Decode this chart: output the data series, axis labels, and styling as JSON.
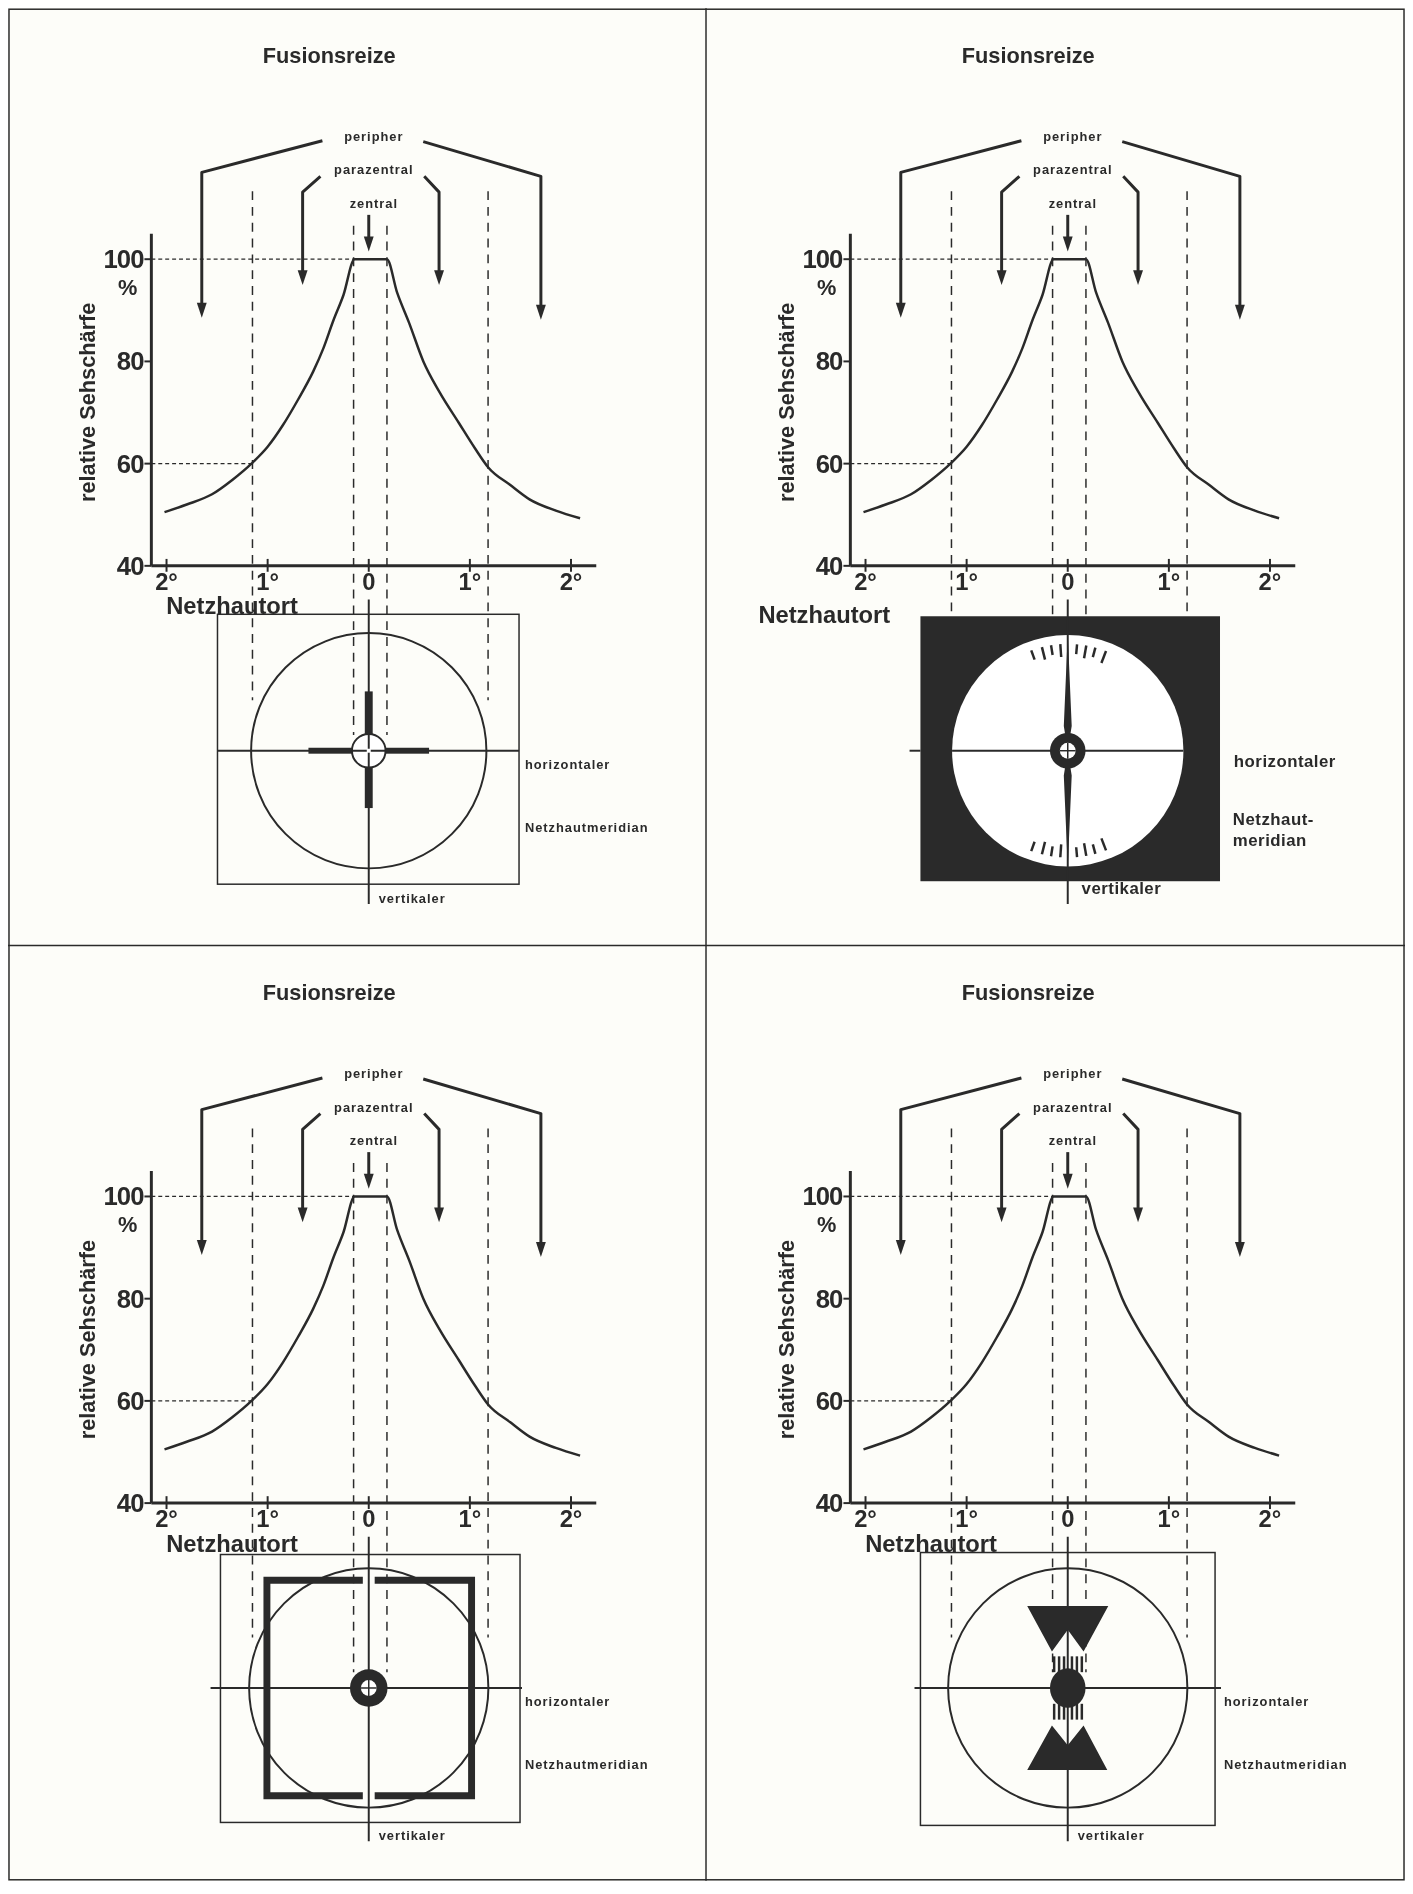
{
  "chart_data": [
    {
      "type": "line",
      "title": "Fusionsreize",
      "xlabel": "Netzhautort",
      "ylabel": "relative Sehschärfe",
      "annotations": [
        "peripher",
        "parazentral",
        "zentral",
        "%",
        "horizontaler",
        "Netzhautmeridian",
        "vertikaler"
      ],
      "x": [
        -2.02,
        -1.8,
        -1.55,
        -1.35,
        -1.16,
        -1.0,
        -0.85,
        -0.7,
        -0.55,
        -0.45,
        -0.35,
        -0.25,
        -0.14,
        0.18,
        0.28,
        0.4,
        0.54,
        0.7,
        0.89,
        1.05,
        1.18,
        1.4,
        1.59,
        1.85,
        2.09
      ],
      "series": [
        {
          "color": "#2a2a2a",
          "values": [
            50.5,
            52,
            54,
            56.8,
            60,
            63.3,
            67.5,
            72.5,
            78,
            82.5,
            88,
            93,
            100,
            100,
            93.5,
            87.5,
            80,
            74,
            68,
            63,
            59.3,
            55.8,
            53,
            50.8,
            49.3
          ]
        }
      ],
      "ref_lines": [
        {
          "axis": "x",
          "value": -1.15,
          "line_style": "dashed"
        },
        {
          "axis": "x",
          "value": -0.15,
          "line_style": "dashed"
        },
        {
          "axis": "x",
          "value": 0.18,
          "line_style": "dashed"
        },
        {
          "axis": "x",
          "value": 1.18,
          "line_style": "dashed"
        },
        {
          "axis": "y",
          "value": 100,
          "line_style": "dashed"
        },
        {
          "axis": "y",
          "value": 60,
          "line_style": "dashed"
        }
      ],
      "xlim": [
        -2.15,
        2.25
      ],
      "ylim": [
        40,
        105
      ],
      "xticks": [
        {
          "value": -2,
          "label": "2°"
        },
        {
          "value": -1,
          "label": "1°"
        },
        {
          "value": 0,
          "label": "0"
        },
        {
          "value": 1,
          "label": "1°"
        },
        {
          "value": 2,
          "label": "2°"
        }
      ],
      "yticks": [
        40,
        60,
        80,
        100
      ]
    },
    {
      "type": "line",
      "title": "Fusionsreize",
      "xlabel": "Netzhautort",
      "ylabel": "relative Sehschärfe",
      "annotations": [
        "peripher",
        "parazentral",
        "zentral",
        "%",
        "horizontaler",
        "Netzhaut-\nmeridian",
        "vertikaler"
      ],
      "x": [
        -2.02,
        -1.8,
        -1.55,
        -1.35,
        -1.16,
        -1.0,
        -0.85,
        -0.7,
        -0.55,
        -0.45,
        -0.35,
        -0.25,
        -0.14,
        0.18,
        0.28,
        0.4,
        0.54,
        0.7,
        0.89,
        1.05,
        1.18,
        1.4,
        1.59,
        1.85,
        2.09
      ],
      "series": [
        {
          "color": "#2a2a2a",
          "values": [
            50.5,
            52,
            54,
            56.8,
            60,
            63.3,
            67.5,
            72.5,
            78,
            82.5,
            88,
            93,
            100,
            100,
            93.5,
            87.5,
            80,
            74,
            68,
            63,
            59.3,
            55.8,
            53,
            50.8,
            49.3
          ]
        }
      ],
      "ref_lines": [
        {
          "axis": "x",
          "value": -1.15,
          "line_style": "dashed"
        },
        {
          "axis": "x",
          "value": -0.15,
          "line_style": "dashed"
        },
        {
          "axis": "x",
          "value": 0.18,
          "line_style": "dashed"
        },
        {
          "axis": "x",
          "value": 1.18,
          "line_style": "dashed"
        },
        {
          "axis": "y",
          "value": 100,
          "line_style": "dashed"
        },
        {
          "axis": "y",
          "value": 60,
          "line_style": "dashed"
        }
      ],
      "xlim": [
        -2.15,
        2.25
      ],
      "ylim": [
        40,
        105
      ],
      "xticks": [
        {
          "value": -2,
          "label": "2°"
        },
        {
          "value": -1,
          "label": "1°"
        },
        {
          "value": 0,
          "label": "0"
        },
        {
          "value": 1,
          "label": "1°"
        },
        {
          "value": 2,
          "label": "2°"
        }
      ],
      "yticks": [
        40,
        60,
        80,
        100
      ]
    },
    {
      "type": "line",
      "title": "Fusionsreize",
      "xlabel": "Netzhautort",
      "ylabel": "relative Sehschärfe",
      "annotations": [
        "peripher",
        "parazentral",
        "zentral",
        "%",
        "horizontaler",
        "Netzhautmeridian",
        "vertikaler"
      ],
      "x": [
        -2.02,
        -1.8,
        -1.55,
        -1.35,
        -1.16,
        -1.0,
        -0.85,
        -0.7,
        -0.55,
        -0.45,
        -0.35,
        -0.25,
        -0.14,
        0.18,
        0.28,
        0.4,
        0.54,
        0.7,
        0.89,
        1.05,
        1.18,
        1.4,
        1.59,
        1.85,
        2.09
      ],
      "series": [
        {
          "color": "#2a2a2a",
          "values": [
            50.5,
            52,
            54,
            56.8,
            60,
            63.3,
            67.5,
            72.5,
            78,
            82.5,
            88,
            93,
            100,
            100,
            93.5,
            87.5,
            80,
            74,
            68,
            63,
            59.3,
            55.8,
            53,
            50.8,
            49.3
          ]
        }
      ],
      "ref_lines": [
        {
          "axis": "x",
          "value": -1.15,
          "line_style": "dashed"
        },
        {
          "axis": "x",
          "value": -0.15,
          "line_style": "dashed"
        },
        {
          "axis": "x",
          "value": 0.18,
          "line_style": "dashed"
        },
        {
          "axis": "x",
          "value": 1.18,
          "line_style": "dashed"
        },
        {
          "axis": "y",
          "value": 100,
          "line_style": "dashed"
        },
        {
          "axis": "y",
          "value": 60,
          "line_style": "dashed"
        }
      ],
      "xlim": [
        -2.15,
        2.25
      ],
      "ylim": [
        40,
        105
      ],
      "xticks": [
        {
          "value": -2,
          "label": "2°"
        },
        {
          "value": -1,
          "label": "1°"
        },
        {
          "value": 0,
          "label": "0"
        },
        {
          "value": 1,
          "label": "1°"
        },
        {
          "value": 2,
          "label": "2°"
        }
      ],
      "yticks": [
        40,
        60,
        80,
        100
      ]
    },
    {
      "type": "line",
      "title": "Fusionsreize",
      "xlabel": "Netzhautort",
      "ylabel": "relative Sehschärfe",
      "annotations": [
        "peripher",
        "parazentral",
        "zentral",
        "%",
        "horizontaler",
        "Netzhautmeridian",
        "vertikaler"
      ],
      "x": [
        -2.02,
        -1.8,
        -1.55,
        -1.35,
        -1.16,
        -1.0,
        -0.85,
        -0.7,
        -0.55,
        -0.45,
        -0.35,
        -0.25,
        -0.14,
        0.18,
        0.28,
        0.4,
        0.54,
        0.7,
        0.89,
        1.05,
        1.18,
        1.4,
        1.59,
        1.85,
        2.09
      ],
      "series": [
        {
          "color": "#2a2a2a",
          "values": [
            50.5,
            52,
            54,
            56.8,
            60,
            63.3,
            67.5,
            72.5,
            78,
            82.5,
            88,
            93,
            100,
            100,
            93.5,
            87.5,
            80,
            74,
            68,
            63,
            59.3,
            55.8,
            53,
            50.8,
            49.3
          ]
        }
      ],
      "ref_lines": [
        {
          "axis": "x",
          "value": -1.15,
          "line_style": "dashed"
        },
        {
          "axis": "x",
          "value": -0.15,
          "line_style": "dashed"
        },
        {
          "axis": "x",
          "value": 0.18,
          "line_style": "dashed"
        },
        {
          "axis": "x",
          "value": 1.18,
          "line_style": "dashed"
        },
        {
          "axis": "y",
          "value": 100,
          "line_style": "dashed"
        },
        {
          "axis": "y",
          "value": 60,
          "line_style": "dashed"
        }
      ],
      "xlim": [
        -2.15,
        2.25
      ],
      "ylim": [
        40,
        105
      ],
      "xticks": [
        {
          "value": -2,
          "label": "2°"
        },
        {
          "value": -1,
          "label": "1°"
        },
        {
          "value": 0,
          "label": "0"
        },
        {
          "value": 1,
          "label": "1°"
        },
        {
          "value": 2,
          "label": "2°"
        }
      ],
      "yticks": [
        40,
        60,
        80,
        100
      ]
    }
  ]
}
